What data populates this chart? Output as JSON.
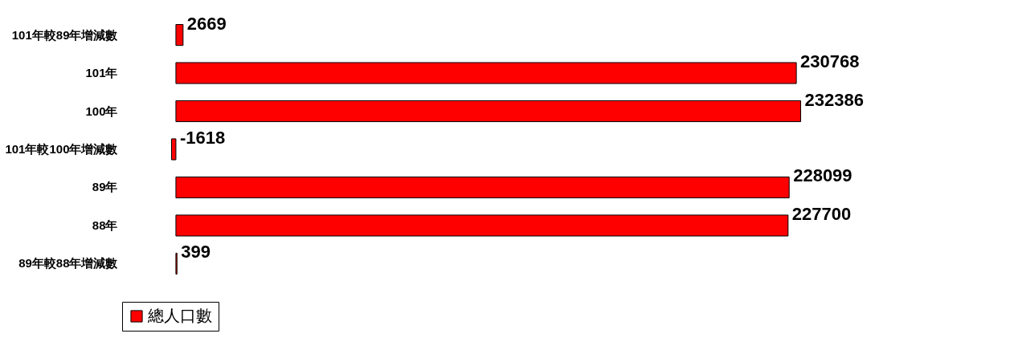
{
  "chart_data": {
    "type": "bar",
    "orientation": "horizontal",
    "categories": [
      "101年較89年增減數",
      "101年",
      "100年",
      "101年較100年增減數",
      "89年",
      "88年",
      "89年較88年增減數"
    ],
    "series": [
      {
        "name": "總人口數",
        "color": "#ff0000",
        "values": [
          2669,
          230768,
          232386,
          -1618,
          228099,
          227700,
          399
        ]
      }
    ],
    "data_labels": true,
    "legend": "bottom"
  }
}
